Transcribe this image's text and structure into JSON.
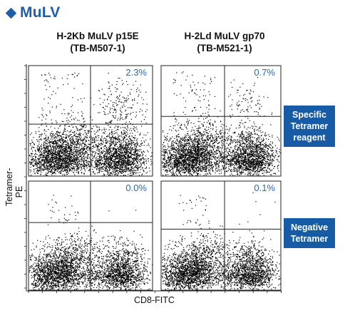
{
  "header": {
    "title": "MuLV"
  },
  "columns": [
    {
      "line1": "H-2Kb MuLV p15E",
      "line2": "(TB-M507-1)"
    },
    {
      "line1": "H-2Ld MuLV gp70",
      "line2": "(TB-M521-1)"
    }
  ],
  "rows": [
    {
      "label_lines": [
        "Specific",
        "Tetramer",
        "reagent"
      ]
    },
    {
      "label_lines": [
        "Negative",
        "Tetramer"
      ]
    }
  ],
  "axes": {
    "ylabel": "Tetramer-PE",
    "xlabel": "CD8-FITC"
  },
  "colors": {
    "accent": "#1f5fa9",
    "label_box": "#175ba6",
    "percent_text": "#2f67a8",
    "dots": "#000000"
  },
  "chart_data": {
    "type": "scatter",
    "xlabel": "CD8-FITC",
    "ylabel": "Tetramer-PE",
    "panels": [
      {
        "reagent": "H-2Kb MuLV p15E",
        "tetramer": "Specific",
        "upper_right_percent": "2.3%",
        "upper_right_value": 2.3
      },
      {
        "reagent": "H-2Ld MuLV gp70",
        "tetramer": "Specific",
        "upper_right_percent": "0.7%",
        "upper_right_value": 0.7
      },
      {
        "reagent": "H-2Kb MuLV p15E",
        "tetramer": "Negative",
        "upper_right_percent": "0.0%",
        "upper_right_value": 0.0
      },
      {
        "reagent": "H-2Ld MuLV gp70",
        "tetramer": "Negative",
        "upper_right_percent": "0.1%",
        "upper_right_value": 0.1
      }
    ]
  }
}
